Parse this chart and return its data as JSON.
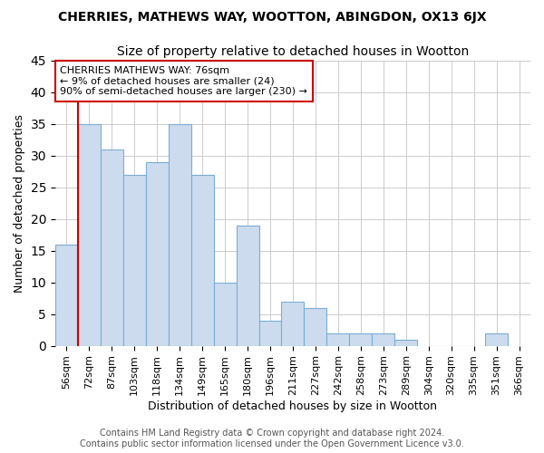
{
  "title": "CHERRIES, MATHEWS WAY, WOOTTON, ABINGDON, OX13 6JX",
  "subtitle": "Size of property relative to detached houses in Wootton",
  "xlabel": "Distribution of detached houses by size in Wootton",
  "ylabel": "Number of detached properties",
  "footer_line1": "Contains HM Land Registry data © Crown copyright and database right 2024.",
  "footer_line2": "Contains public sector information licensed under the Open Government Licence v3.0.",
  "categories": [
    "56sqm",
    "72sqm",
    "87sqm",
    "103sqm",
    "118sqm",
    "134sqm",
    "149sqm",
    "165sqm",
    "180sqm",
    "196sqm",
    "211sqm",
    "227sqm",
    "242sqm",
    "258sqm",
    "273sqm",
    "289sqm",
    "304sqm",
    "320sqm",
    "335sqm",
    "351sqm",
    "366sqm"
  ],
  "values": [
    16,
    35,
    31,
    27,
    29,
    35,
    27,
    10,
    19,
    4,
    7,
    6,
    2,
    2,
    2,
    1,
    0,
    0,
    0,
    2,
    0
  ],
  "bar_color": "#ccdcee",
  "bar_edge_color": "#7aadd4",
  "vline_x": 1.5,
  "vline_color": "#cc0000",
  "annotation_title": "CHERRIES MATHEWS WAY: 76sqm",
  "annotation_line1": "← 9% of detached houses are smaller (24)",
  "annotation_line2": "90% of semi-detached houses are larger (230) →",
  "annotation_box_color": "white",
  "annotation_box_edge_color": "#cc0000",
  "ylim": [
    0,
    45
  ],
  "yticks": [
    0,
    5,
    10,
    15,
    20,
    25,
    30,
    35,
    40,
    45
  ],
  "background_color": "#ffffff",
  "plot_background_color": "#ffffff",
  "grid_color": "#cccccc",
  "title_fontsize": 10,
  "subtitle_fontsize": 10,
  "ylabel_fontsize": 9,
  "xlabel_fontsize": 9,
  "tick_fontsize": 8,
  "footer_fontsize": 7,
  "annotation_fontsize": 8
}
